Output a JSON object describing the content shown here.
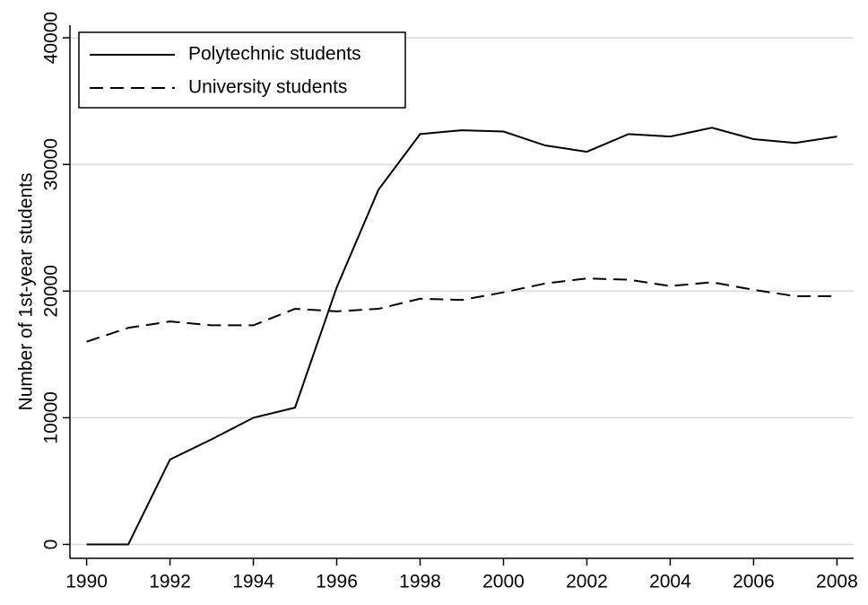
{
  "chart_data": {
    "type": "line",
    "y_label": "Number of 1st-year students",
    "x": [
      1990,
      1991,
      1992,
      1993,
      1994,
      1995,
      1996,
      1997,
      1998,
      1999,
      2000,
      2001,
      2002,
      2003,
      2004,
      2005,
      2006,
      2007,
      2008
    ],
    "series": [
      {
        "name": "Polytechnic students",
        "color": "#000000",
        "dash": "solid",
        "values": [
          0,
          0,
          6700,
          8300,
          10000,
          10800,
          20300,
          28000,
          32400,
          32700,
          32600,
          31500,
          31000,
          32400,
          32200,
          32900,
          32000,
          31700,
          32200
        ]
      },
      {
        "name": "University students",
        "color": "#000000",
        "dash": "dashed",
        "values": [
          16000,
          17100,
          17600,
          17300,
          17300,
          18600,
          18400,
          18600,
          19400,
          19300,
          19900,
          20600,
          21000,
          20900,
          20400,
          20700,
          20100,
          19600,
          19600
        ]
      }
    ],
    "xlim": [
      1989.6,
      2008.4
    ],
    "ylim": [
      -1100,
      41000
    ],
    "xticks": [
      1990,
      1992,
      1994,
      1996,
      1998,
      2000,
      2002,
      2004,
      2006,
      2008
    ],
    "yticks": [
      0,
      10000,
      20000,
      30000,
      40000
    ],
    "grid": true,
    "legend": "top-left"
  }
}
